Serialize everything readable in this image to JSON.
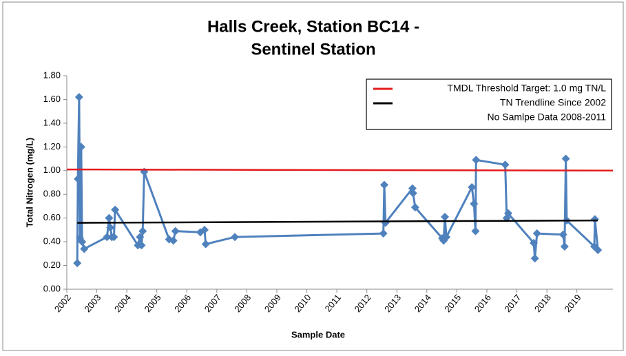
{
  "chart_data": {
    "type": "scatter-line",
    "title": [
      "Halls Creek, Station BC14 -",
      "Sentinel Station"
    ],
    "x_label": "Sample Date",
    "y_label": "Total Nitrogen (mg/L)",
    "xlim": [
      2002,
      2020.2
    ],
    "xticks": [
      2002,
      2003,
      2004,
      2005,
      2006,
      2007,
      2008,
      2009,
      2010,
      2011,
      2012,
      2013,
      2014,
      2015,
      2016,
      2017,
      2018,
      2019
    ],
    "ylim": [
      0,
      1.8
    ],
    "yticks": [
      {
        "value": 0,
        "label": "0.00"
      },
      {
        "value": 0.2,
        "label": "0.20"
      },
      {
        "value": 0.4,
        "label": "0.40"
      },
      {
        "value": 0.6,
        "label": "0.60"
      },
      {
        "value": 0.8,
        "label": "0.80"
      },
      {
        "value": 1.0,
        "label": "1.00"
      },
      {
        "value": 1.2,
        "label": "1.20"
      },
      {
        "value": 1.4,
        "label": "1.40"
      },
      {
        "value": 1.6,
        "label": "1.60"
      },
      {
        "value": 1.8,
        "label": "1.80"
      }
    ],
    "grid": false,
    "legend_position": "top-right",
    "legend_note": "No Samlpe Data 2008-2011",
    "series": [
      {
        "color": "#4f81bd",
        "marker": "diamond",
        "x": [
          2002.35,
          2002.37,
          2002.41,
          2002.44,
          2002.48,
          2002.51,
          2002.58,
          2003.34,
          2003.41,
          2003.45,
          2003.5,
          2003.57,
          2003.61,
          2004.37,
          2004.44,
          2004.49,
          2004.53,
          2004.58,
          2005.41,
          2005.55,
          2005.62,
          2006.45,
          2006.59,
          2006.63,
          2007.6,
          2012.55,
          2012.58,
          2012.62,
          2013.52,
          2013.54,
          2013.61,
          2014.51,
          2014.56,
          2014.6,
          2014.65,
          2015.5,
          2015.57,
          2015.62,
          2015.64,
          2016.61,
          2016.66,
          2016.71,
          2017.56,
          2017.6,
          2017.67,
          2018.54,
          2018.59,
          2018.63,
          2018.66,
          2019.58,
          2019.6,
          2019.7
        ],
        "values": [
          0.22,
          0.93,
          1.62,
          0.43,
          1.2,
          0.4,
          0.34,
          0.44,
          0.6,
          0.52,
          0.44,
          0.44,
          0.67,
          0.37,
          0.44,
          0.37,
          0.49,
          0.99,
          0.42,
          0.41,
          0.49,
          0.48,
          0.5,
          0.38,
          0.44,
          0.47,
          0.88,
          0.56,
          0.85,
          0.81,
          0.69,
          0.43,
          0.41,
          0.61,
          0.44,
          0.86,
          0.72,
          0.49,
          1.09,
          1.05,
          0.6,
          0.64,
          0.39,
          0.26,
          0.47,
          0.46,
          0.36,
          1.1,
          0.58,
          0.36,
          0.59,
          0.33
        ]
      },
      {
        "name": "TMDL Threshold Target: 1.0 mg TN/L",
        "color": "#e31a1c",
        "marker": "none",
        "x": [
          2002,
          2020.2
        ],
        "values": [
          1.01,
          1.0
        ]
      },
      {
        "name": "TN Trendline Since 2002",
        "color": "#000000",
        "marker": "none",
        "x": [
          2002.35,
          2019.7
        ],
        "values": [
          0.56,
          0.58
        ]
      }
    ]
  }
}
